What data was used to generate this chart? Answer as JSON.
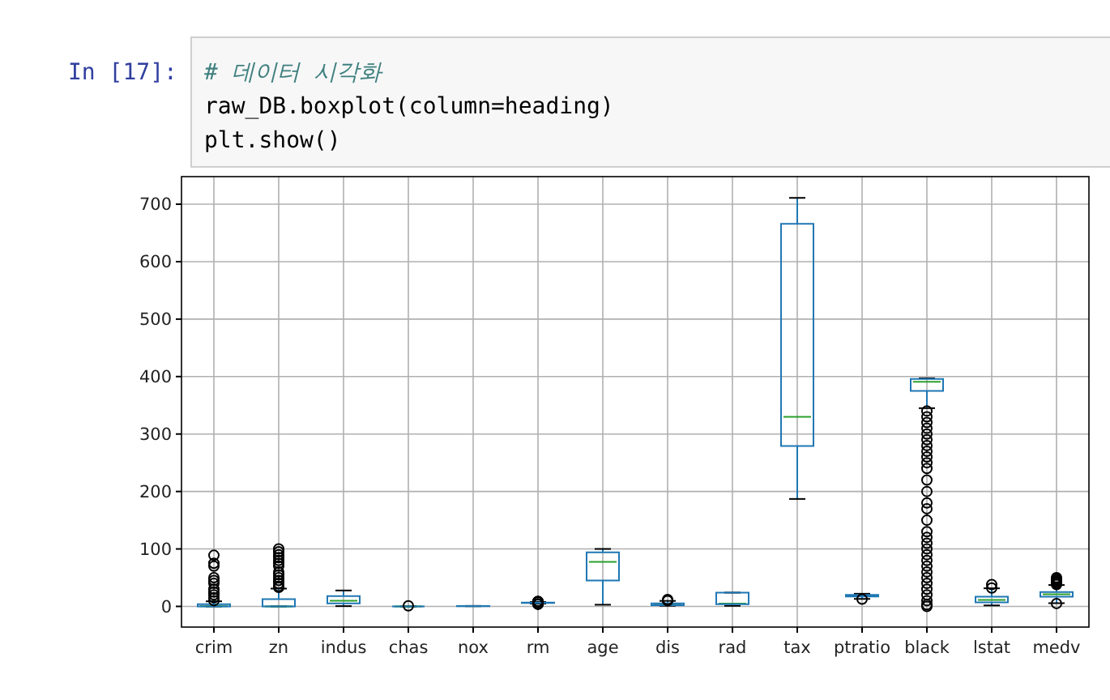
{
  "chart_data": {
    "type": "box",
    "categories": [
      "crim",
      "zn",
      "indus",
      "chas",
      "nox",
      "rm",
      "age",
      "dis",
      "rad",
      "tax",
      "ptratio",
      "black",
      "lstat",
      "medv"
    ],
    "series": [
      {
        "color": "#1f77b4",
        "boxes": [
          {
            "low": 0,
            "q1": 0.1,
            "median": 0.3,
            "q3": 3.7,
            "high": 8.9,
            "outliers": [
              10,
              15,
              20,
              25,
              30,
              40,
              45,
              50,
              70,
              75,
              89
            ]
          },
          {
            "low": 0,
            "q1": 0,
            "median": 0,
            "q3": 12.5,
            "high": 31,
            "outliers": [
              33,
              35,
              40,
              45,
              50,
              55,
              60,
              70,
              75,
              80,
              85,
              90,
              95,
              100
            ]
          },
          {
            "low": 0.5,
            "q1": 5.2,
            "median": 9.7,
            "q3": 18.1,
            "high": 27.7
          },
          {
            "low": 0,
            "q1": 0,
            "median": 0,
            "q3": 0,
            "high": 0,
            "outliers": [
              1
            ]
          },
          {
            "low": 0.4,
            "q1": 0.45,
            "median": 0.54,
            "q3": 0.62,
            "high": 0.87
          },
          {
            "low": 4.8,
            "q1": 5.9,
            "median": 6.2,
            "q3": 6.6,
            "high": 7.7,
            "outliers": [
              3.6,
              4.1,
              4.5,
              7.8,
              8.0,
              8.4,
              8.8
            ]
          },
          {
            "low": 2.9,
            "q1": 45,
            "median": 77.5,
            "q3": 94,
            "high": 100
          },
          {
            "low": 1.1,
            "q1": 2.1,
            "median": 3.2,
            "q3": 5.2,
            "high": 9.6,
            "outliers": [
              10,
              10.6,
              12.1
            ]
          },
          {
            "low": 1,
            "q1": 4,
            "median": 5,
            "q3": 24,
            "high": 24
          },
          {
            "low": 187,
            "q1": 279,
            "median": 330,
            "q3": 666,
            "high": 711
          },
          {
            "low": 13,
            "q1": 17.4,
            "median": 19,
            "q3": 20.2,
            "high": 22,
            "outliers": [
              12.6
            ]
          },
          {
            "low": 345,
            "q1": 375,
            "median": 391,
            "q3": 396,
            "high": 397,
            "outliers": [
              0,
              3,
              10,
              20,
              30,
              40,
              50,
              60,
              70,
              80,
              90,
              100,
              110,
              120,
              130,
              150,
              170,
              180,
              200,
              220,
              240,
              250,
              260,
              270,
              280,
              290,
              300,
              310,
              320,
              330,
              340
            ]
          },
          {
            "low": 1.7,
            "q1": 7,
            "median": 11.4,
            "q3": 17,
            "high": 31.5,
            "outliers": [
              32,
              38
            ]
          },
          {
            "low": 5.6,
            "q1": 17,
            "median": 21.2,
            "q3": 25,
            "high": 37.2,
            "outliers": [
              5,
              38,
              40,
              42,
              44,
              46,
              48,
              50
            ]
          }
        ]
      }
    ],
    "ylim": [
      -36,
      748
    ],
    "yticks": [
      0,
      100,
      200,
      300,
      400,
      500,
      600,
      700
    ],
    "grid": true,
    "annotations": [
      "In [17]:",
      "# 데이터 시각화",
      "raw_DB.boxplot(column=heading)",
      "plt.show()"
    ]
  }
}
